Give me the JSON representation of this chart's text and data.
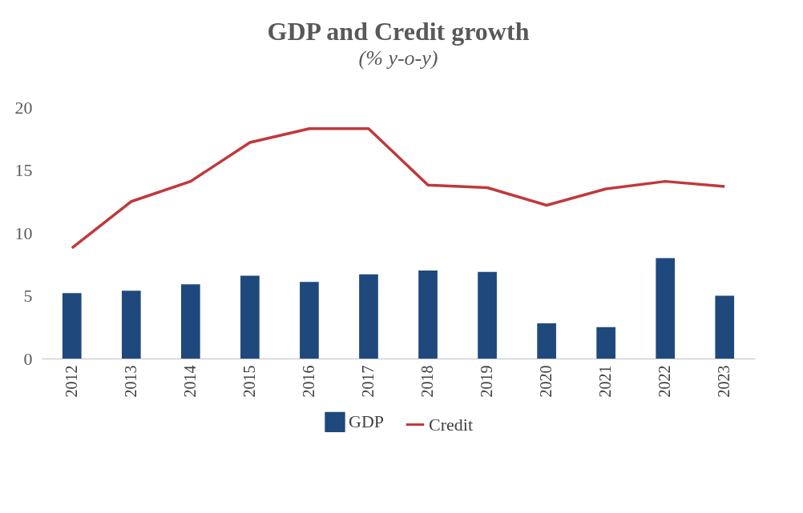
{
  "chart_data": {
    "type": "bar",
    "title": "GDP and Credit growth",
    "subtitle": "(% y-o-y)",
    "categories": [
      "2012",
      "2013",
      "2014",
      "2015",
      "2016",
      "2017",
      "2018",
      "2019",
      "2020",
      "2021",
      "2022",
      "2023"
    ],
    "series": [
      {
        "name": "GDP",
        "color": "#1f497d",
        "values": [
          5.2,
          5.4,
          5.9,
          6.6,
          6.1,
          6.7,
          7.0,
          6.9,
          2.8,
          2.5,
          8.0,
          5.0
        ]
      },
      {
        "name": "Credit",
        "type": "line",
        "color": "#c0393b",
        "values": [
          8.8,
          12.5,
          14.1,
          17.2,
          18.3,
          18.3,
          13.8,
          13.6,
          12.2,
          13.5,
          14.1,
          13.7
        ]
      }
    ],
    "ylim": [
      0,
      20
    ],
    "yticks": [
      0,
      5,
      10,
      15,
      20
    ],
    "legend": "bottom",
    "grid": false
  }
}
